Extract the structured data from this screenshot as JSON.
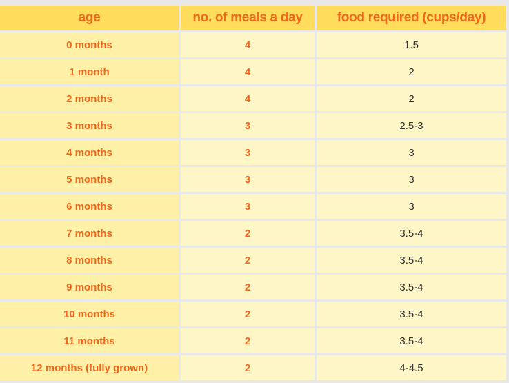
{
  "table": {
    "headers": {
      "age": "age",
      "meals": "no. of meals a day",
      "food": "food required (cups/day)"
    },
    "rows": [
      {
        "age": "0 months",
        "meals": "4",
        "food": "1.5"
      },
      {
        "age": "1 month",
        "meals": "4",
        "food": "2"
      },
      {
        "age": "2 months",
        "meals": "4",
        "food": "2"
      },
      {
        "age": "3 months",
        "meals": "3",
        "food": "2.5-3"
      },
      {
        "age": "4 months",
        "meals": "3",
        "food": "3"
      },
      {
        "age": "5 months",
        "meals": "3",
        "food": "3"
      },
      {
        "age": "6 months",
        "meals": "3",
        "food": "3"
      },
      {
        "age": "7 months",
        "meals": "2",
        "food": "3.5-4"
      },
      {
        "age": "8 months",
        "meals": "2",
        "food": "3.5-4"
      },
      {
        "age": "9 months",
        "meals": "2",
        "food": "3.5-4"
      },
      {
        "age": "10 months",
        "meals": "2",
        "food": "3.5-4"
      },
      {
        "age": "11 months",
        "meals": "2",
        "food": "3.5-4"
      },
      {
        "age": "12 months (fully grown)",
        "meals": "2",
        "food": "4-4.5"
      }
    ]
  },
  "colors": {
    "header_bg": "#ffdc5c",
    "accent_text": "#f0661a",
    "age_col_bg": "#fff0a8",
    "body_bg": "#fff6c8",
    "body_text": "#333333"
  }
}
